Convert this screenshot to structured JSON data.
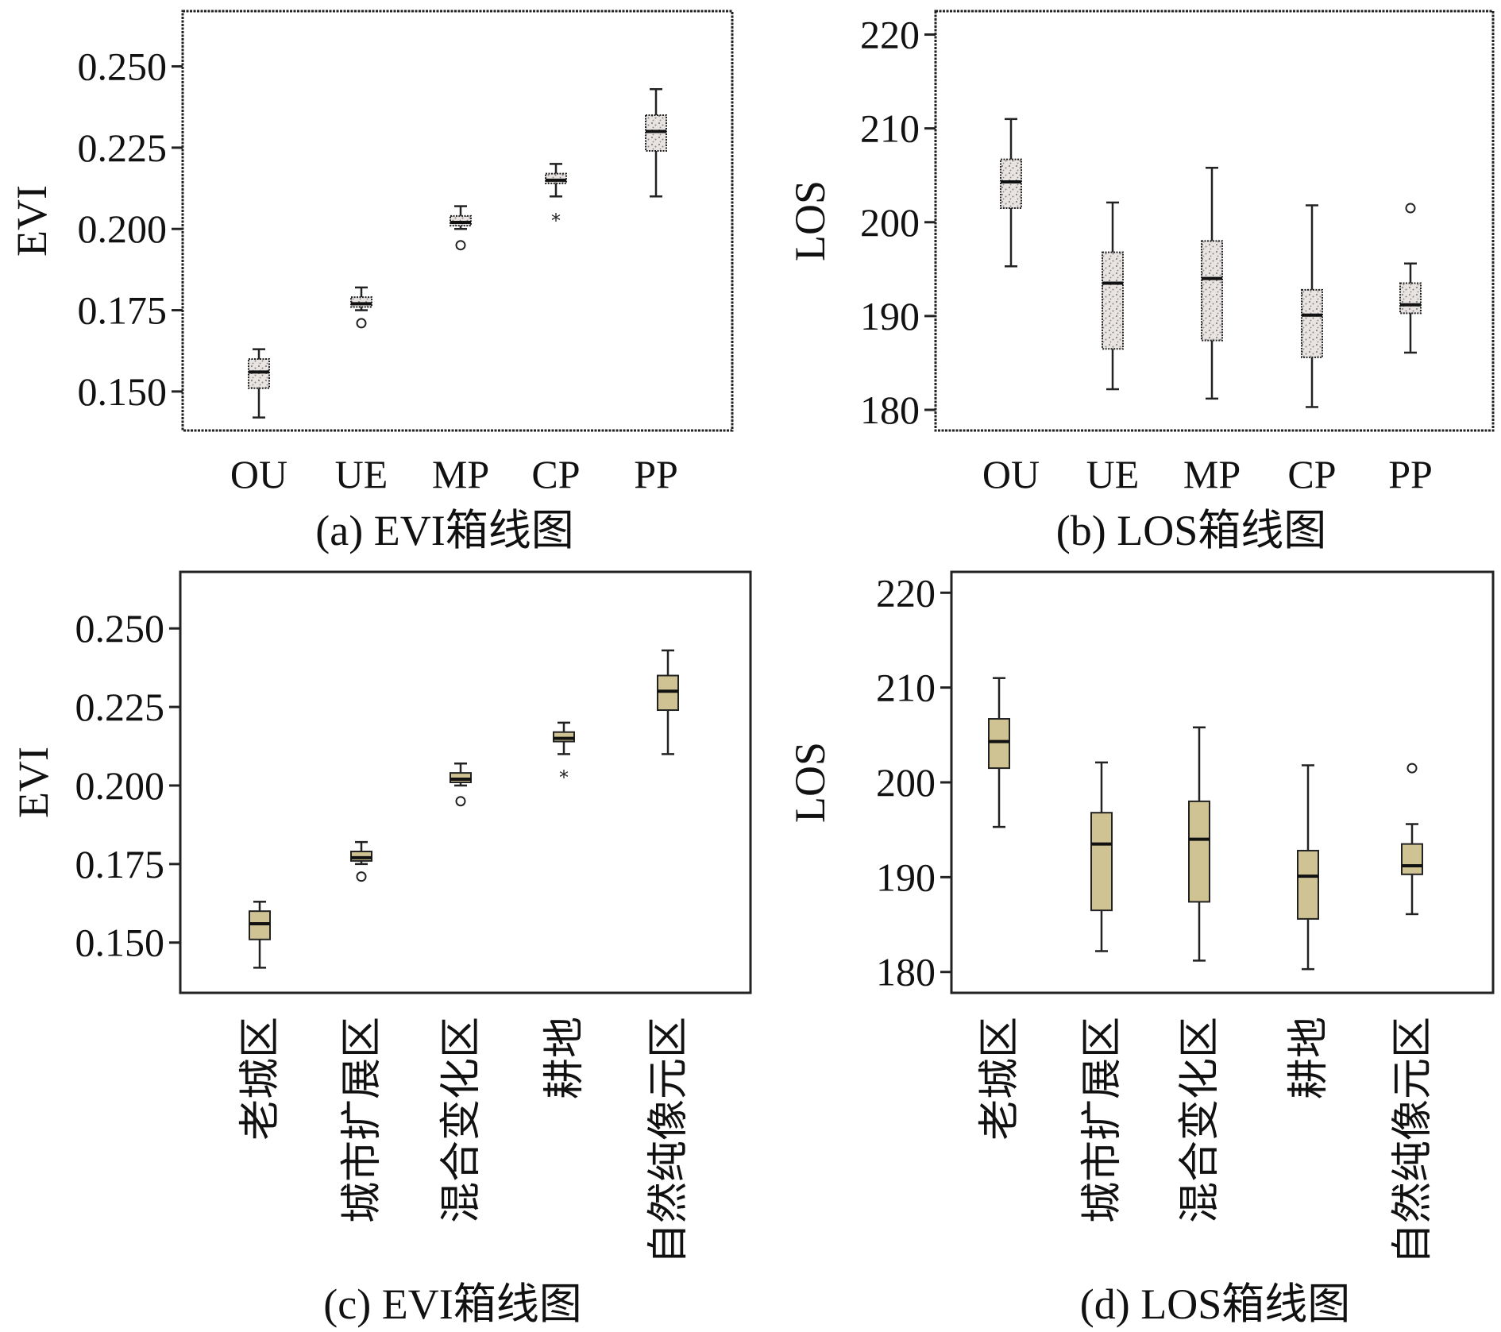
{
  "colors": {
    "box_fill_stipple": "#e8e4e2",
    "stipple_dot": "#8a8282",
    "box_fill_solid": "#cfc394",
    "stroke": "#222222",
    "median": "#111111"
  },
  "chart_data": [
    {
      "id": "a",
      "type": "boxplot",
      "style": "stipple",
      "caption": "(a) EVI箱线图",
      "ylabel": "EVI",
      "ylim": [
        0.138,
        0.267
      ],
      "yticks": [
        0.15,
        0.175,
        0.2,
        0.225,
        0.25
      ],
      "ytick_labels": [
        "0.150",
        "0.175",
        "0.200",
        "0.225",
        "0.250"
      ],
      "category_orientation": "horizontal",
      "categories": [
        "OU",
        "UE",
        "MP",
        "CP",
        "PP"
      ],
      "boxes": [
        {
          "whisker_low": 0.142,
          "q1": 0.151,
          "median": 0.156,
          "q3": 0.16,
          "whisker_high": 0.163,
          "outliers": []
        },
        {
          "whisker_low": 0.175,
          "q1": 0.176,
          "median": 0.177,
          "q3": 0.179,
          "whisker_high": 0.182,
          "outliers": [
            {
              "value": 0.171,
              "marker": "circle"
            }
          ]
        },
        {
          "whisker_low": 0.2,
          "q1": 0.201,
          "median": 0.202,
          "q3": 0.204,
          "whisker_high": 0.207,
          "outliers": [
            {
              "value": 0.195,
              "marker": "circle"
            }
          ]
        },
        {
          "whisker_low": 0.21,
          "q1": 0.214,
          "median": 0.215,
          "q3": 0.217,
          "whisker_high": 0.22,
          "outliers": [
            {
              "value": 0.204,
              "marker": "star"
            }
          ]
        },
        {
          "whisker_low": 0.21,
          "q1": 0.224,
          "median": 0.23,
          "q3": 0.235,
          "whisker_high": 0.243,
          "outliers": []
        }
      ]
    },
    {
      "id": "b",
      "type": "boxplot",
      "style": "stipple",
      "caption": "(b) LOS箱线图",
      "ylabel": "LOS",
      "ylim": [
        177.8,
        222.5
      ],
      "yticks": [
        180,
        190,
        200,
        210,
        220
      ],
      "ytick_labels": [
        "180",
        "190",
        "200",
        "210",
        "220"
      ],
      "category_orientation": "horizontal",
      "categories": [
        "OU",
        "UE",
        "MP",
        "CP",
        "PP"
      ],
      "boxes": [
        {
          "whisker_low": 195.3,
          "q1": 201.5,
          "median": 204.3,
          "q3": 206.7,
          "whisker_high": 211.0,
          "outliers": []
        },
        {
          "whisker_low": 182.2,
          "q1": 186.5,
          "median": 193.5,
          "q3": 196.8,
          "whisker_high": 202.1,
          "outliers": []
        },
        {
          "whisker_low": 181.2,
          "q1": 187.4,
          "median": 194.0,
          "q3": 198.0,
          "whisker_high": 205.8,
          "outliers": []
        },
        {
          "whisker_low": 180.3,
          "q1": 185.6,
          "median": 190.1,
          "q3": 192.8,
          "whisker_high": 201.8,
          "outliers": []
        },
        {
          "whisker_low": 186.1,
          "q1": 190.3,
          "median": 191.2,
          "q3": 193.5,
          "whisker_high": 195.6,
          "outliers": [
            {
              "value": 201.5,
              "marker": "circle"
            }
          ]
        }
      ]
    },
    {
      "id": "c",
      "type": "boxplot",
      "style": "solid",
      "caption": "(c) EVI箱线图",
      "ylabel": "EVI",
      "ylim": [
        0.134,
        0.268
      ],
      "yticks": [
        0.15,
        0.175,
        0.2,
        0.225,
        0.25
      ],
      "ytick_labels": [
        "0.150",
        "0.175",
        "0.200",
        "0.225",
        "0.250"
      ],
      "category_orientation": "vertical",
      "categories": [
        "老城区",
        "城市扩展区",
        "混合变化区",
        "耕地",
        "自然纯像元区"
      ],
      "boxes": [
        {
          "whisker_low": 0.142,
          "q1": 0.151,
          "median": 0.156,
          "q3": 0.16,
          "whisker_high": 0.163,
          "outliers": []
        },
        {
          "whisker_low": 0.175,
          "q1": 0.176,
          "median": 0.177,
          "q3": 0.179,
          "whisker_high": 0.182,
          "outliers": [
            {
              "value": 0.171,
              "marker": "circle"
            }
          ]
        },
        {
          "whisker_low": 0.2,
          "q1": 0.201,
          "median": 0.202,
          "q3": 0.204,
          "whisker_high": 0.207,
          "outliers": [
            {
              "value": 0.195,
              "marker": "circle"
            }
          ]
        },
        {
          "whisker_low": 0.21,
          "q1": 0.214,
          "median": 0.215,
          "q3": 0.217,
          "whisker_high": 0.22,
          "outliers": [
            {
              "value": 0.204,
              "marker": "star"
            }
          ]
        },
        {
          "whisker_low": 0.21,
          "q1": 0.224,
          "median": 0.23,
          "q3": 0.235,
          "whisker_high": 0.243,
          "outliers": []
        }
      ]
    },
    {
      "id": "d",
      "type": "boxplot",
      "style": "solid",
      "caption": "(d) LOS箱线图",
      "ylabel": "LOS",
      "ylim": [
        177.8,
        222.2
      ],
      "yticks": [
        180,
        190,
        200,
        210,
        220
      ],
      "ytick_labels": [
        "180",
        "190",
        "200",
        "210",
        "220"
      ],
      "category_orientation": "vertical",
      "categories": [
        "老城区",
        "城市扩展区",
        "混合变化区",
        "耕地",
        "自然纯像元区"
      ],
      "boxes": [
        {
          "whisker_low": 195.3,
          "q1": 201.5,
          "median": 204.3,
          "q3": 206.7,
          "whisker_high": 211.0,
          "outliers": []
        },
        {
          "whisker_low": 182.2,
          "q1": 186.5,
          "median": 193.5,
          "q3": 196.8,
          "whisker_high": 202.1,
          "outliers": []
        },
        {
          "whisker_low": 181.2,
          "q1": 187.4,
          "median": 194.0,
          "q3": 198.0,
          "whisker_high": 205.8,
          "outliers": []
        },
        {
          "whisker_low": 180.3,
          "q1": 185.6,
          "median": 190.1,
          "q3": 192.8,
          "whisker_high": 201.8,
          "outliers": []
        },
        {
          "whisker_low": 186.1,
          "q1": 190.3,
          "median": 191.2,
          "q3": 193.5,
          "whisker_high": 195.6,
          "outliers": [
            {
              "value": 201.5,
              "marker": "circle"
            }
          ]
        }
      ]
    }
  ]
}
